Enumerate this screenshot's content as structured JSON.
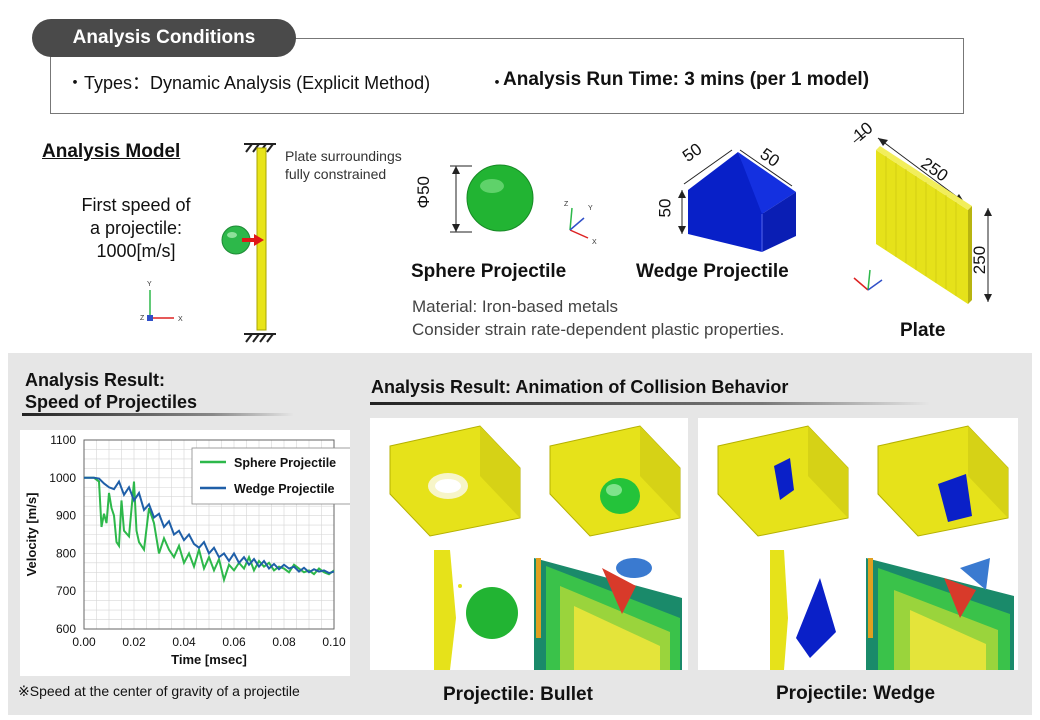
{
  "conditions": {
    "tab_label": "Analysis Conditions",
    "types_text": "・Types：Dynamic Analysis (Explicit Method)",
    "runtime_bullet": "・",
    "runtime_text": "Analysis Run Time: 3 mins (per 1 model)"
  },
  "model": {
    "title": "Analysis Model",
    "speed_line1": "First speed of",
    "speed_line2": "a projectile:",
    "speed_line3": "1000[m/s]",
    "constraint_line1": "Plate surroundings",
    "constraint_line2": "fully constrained",
    "sphere_dim": "Φ50",
    "sphere_label": "Sphere Projectile",
    "wedge_dim_a": "50",
    "wedge_dim_b": "50",
    "wedge_dim_c": "50",
    "wedge_label": "Wedge Projectile",
    "plate_dim_thk": "10",
    "plate_dim_w": "250",
    "plate_dim_h": "250",
    "plate_label": "Plate",
    "material_line1": "Material: Iron-based metals",
    "material_line2": "Consider strain rate-dependent plastic properties."
  },
  "axes_small": {
    "y": "Y",
    "z": "Z",
    "x": "X"
  },
  "results": {
    "speed_title_line1": "Analysis Result:",
    "speed_title_line2": "Speed of Projectiles",
    "anim_title": "Analysis Result: Animation of Collision Behavior",
    "note": "※Speed at the center of gravity of a projectile",
    "caption_bullet": "Projectile: Bullet",
    "caption_wedge": "Projectile: Wedge"
  },
  "colors": {
    "sphere_series": "#2db84a",
    "wedge_series": "#1f5fa8",
    "plate": "#e8e418",
    "wedge": "#0018c8",
    "pill": "#4a4a4a",
    "panel": "#e6e6e6"
  },
  "chart_data": {
    "type": "line",
    "xlabel": "Time [msec]",
    "ylabel": "Velocity [m/s]",
    "xlim": [
      0,
      0.1
    ],
    "ylim": [
      600,
      1100
    ],
    "x_ticks": [
      "0.00",
      "0.02",
      "0.04",
      "0.06",
      "0.08",
      "0.10"
    ],
    "y_ticks": [
      "600",
      "700",
      "800",
      "900",
      "1000",
      "1100"
    ],
    "grid": true,
    "legend_position": "top-right",
    "series": [
      {
        "name": "Sphere Projectile",
        "color": "#2db84a",
        "x": [
          0,
          0.004,
          0.006,
          0.007,
          0.008,
          0.009,
          0.01,
          0.011,
          0.012,
          0.013,
          0.014,
          0.015,
          0.016,
          0.018,
          0.02,
          0.021,
          0.022,
          0.024,
          0.026,
          0.028,
          0.03,
          0.032,
          0.034,
          0.036,
          0.038,
          0.04,
          0.042,
          0.044,
          0.046,
          0.048,
          0.05,
          0.052,
          0.054,
          0.056,
          0.058,
          0.06,
          0.062,
          0.064,
          0.066,
          0.068,
          0.07,
          0.072,
          0.074,
          0.076,
          0.078,
          0.08,
          0.082,
          0.084,
          0.086,
          0.088,
          0.09,
          0.092,
          0.094,
          0.096,
          0.098,
          0.1
        ],
        "y": [
          1000,
          1000,
          990,
          870,
          905,
          880,
          960,
          920,
          900,
          830,
          820,
          940,
          860,
          845,
          990,
          860,
          830,
          810,
          920,
          880,
          800,
          840,
          810,
          790,
          820,
          775,
          800,
          765,
          810,
          760,
          790,
          755,
          785,
          730,
          770,
          755,
          775,
          760,
          790,
          755,
          780,
          765,
          775,
          755,
          765,
          760,
          750,
          770,
          760,
          750,
          755,
          745,
          760,
          750,
          745,
          755
        ]
      },
      {
        "name": "Wedge Projectile",
        "color": "#1f5fa8",
        "x": [
          0,
          0.004,
          0.006,
          0.008,
          0.01,
          0.012,
          0.014,
          0.016,
          0.018,
          0.02,
          0.022,
          0.024,
          0.026,
          0.028,
          0.03,
          0.032,
          0.034,
          0.036,
          0.038,
          0.04,
          0.042,
          0.044,
          0.046,
          0.048,
          0.05,
          0.052,
          0.054,
          0.056,
          0.058,
          0.06,
          0.062,
          0.064,
          0.066,
          0.068,
          0.07,
          0.072,
          0.074,
          0.076,
          0.078,
          0.08,
          0.082,
          0.084,
          0.086,
          0.088,
          0.09,
          0.092,
          0.094,
          0.096,
          0.098,
          0.1
        ],
        "y": [
          1000,
          1000,
          998,
          985,
          975,
          970,
          990,
          955,
          975,
          940,
          960,
          915,
          930,
          895,
          905,
          870,
          885,
          850,
          860,
          835,
          850,
          825,
          815,
          830,
          800,
          815,
          790,
          800,
          780,
          800,
          775,
          790,
          770,
          785,
          765,
          780,
          760,
          772,
          758,
          770,
          760,
          765,
          752,
          762,
          750,
          758,
          752,
          755,
          748,
          752
        ]
      }
    ]
  }
}
